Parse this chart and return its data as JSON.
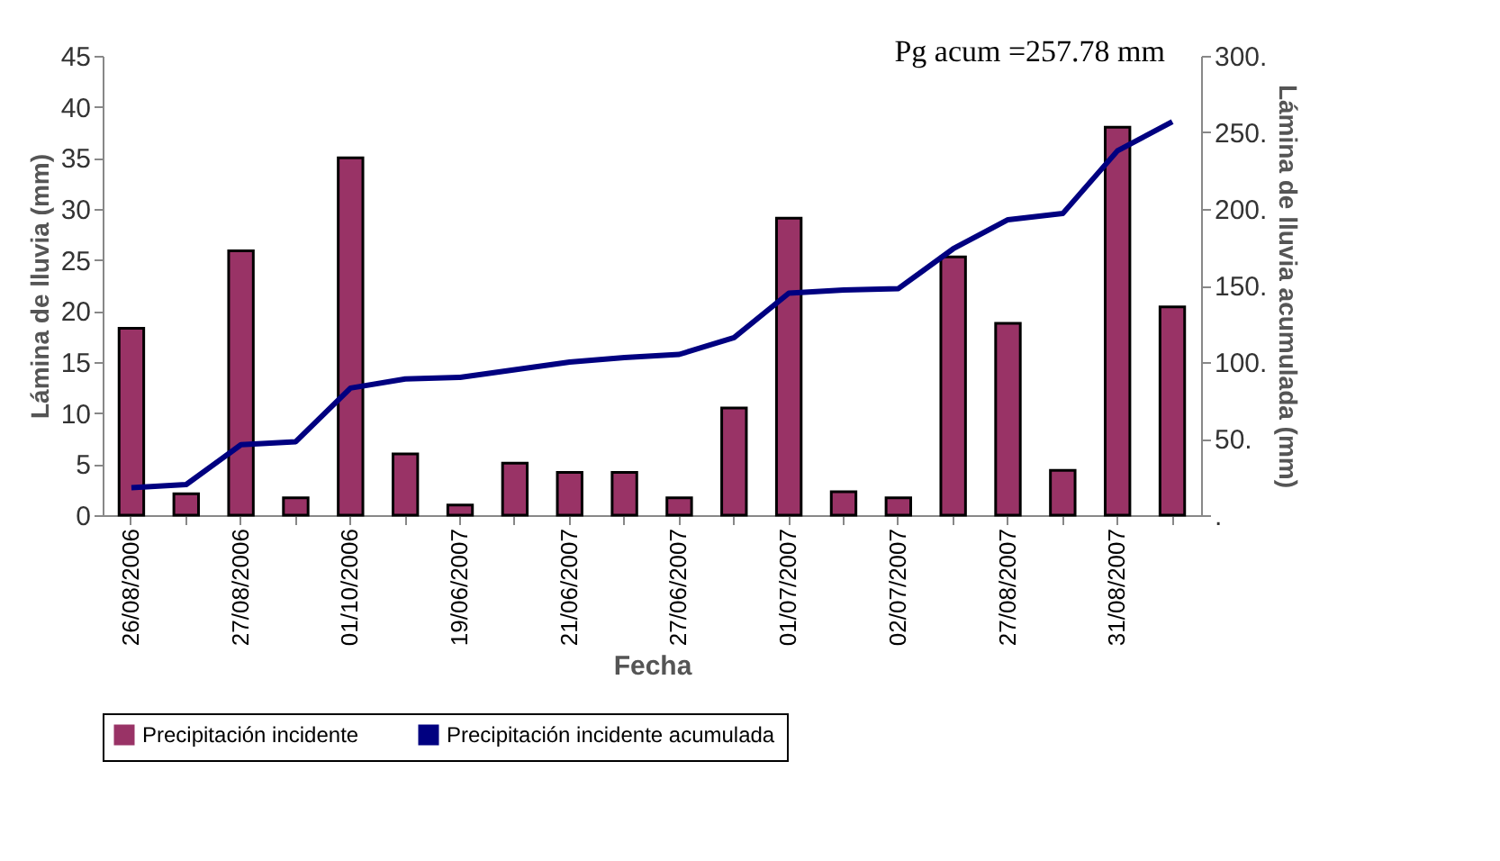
{
  "chart_data": {
    "type": "bar",
    "categories": [
      "26/08/2006",
      null,
      "27/08/2006",
      null,
      "01/10/2006",
      null,
      "19/06/2007",
      null,
      "21/06/2007",
      null,
      "27/06/2007",
      null,
      "01/07/2007",
      null,
      "02/07/2007",
      null,
      "27/08/2007",
      null,
      "31/08/2007",
      null
    ],
    "series": [
      {
        "name": "Precipitación incidente",
        "color": "#993366",
        "values": [
          18.3,
          2.1,
          25.9,
          1.7,
          35.0,
          6.0,
          1.0,
          5.1,
          4.2,
          4.2,
          1.7,
          10.5,
          29.1,
          2.3,
          1.7,
          25.3,
          18.8,
          4.4,
          38.0,
          20.4
        ]
      },
      {
        "name": "Precipitación incidente acumulada",
        "type": "line",
        "axis": "y2",
        "color": "#000080",
        "values": [
          18,
          20,
          46,
          48,
          83,
          89,
          90,
          95,
          100,
          103,
          105,
          116,
          145,
          147,
          148,
          174,
          193,
          197,
          238,
          257
        ]
      }
    ],
    "xlabel": "Fecha",
    "ylabel": "Lámina de lluvia (mm)",
    "y2label": "Lámina de lluvia acumulada (mm)",
    "ylim": [
      0,
      45
    ],
    "yticks": [
      0,
      5,
      10,
      15,
      20,
      25,
      30,
      35,
      40,
      45
    ],
    "y2lim": [
      0,
      300
    ],
    "y2ticks": [
      {
        "value": 0,
        "label": "."
      },
      {
        "value": 50,
        "label": "50."
      },
      {
        "value": 100,
        "label": "100."
      },
      {
        "value": 150,
        "label": "150."
      },
      {
        "value": 200,
        "label": "200."
      },
      {
        "value": 250,
        "label": "250."
      },
      {
        "value": 300,
        "label": "300."
      }
    ],
    "annotations": [
      "Pg acum =257.78 mm"
    ],
    "legend": "bottom",
    "grid": false,
    "marker": "none"
  }
}
